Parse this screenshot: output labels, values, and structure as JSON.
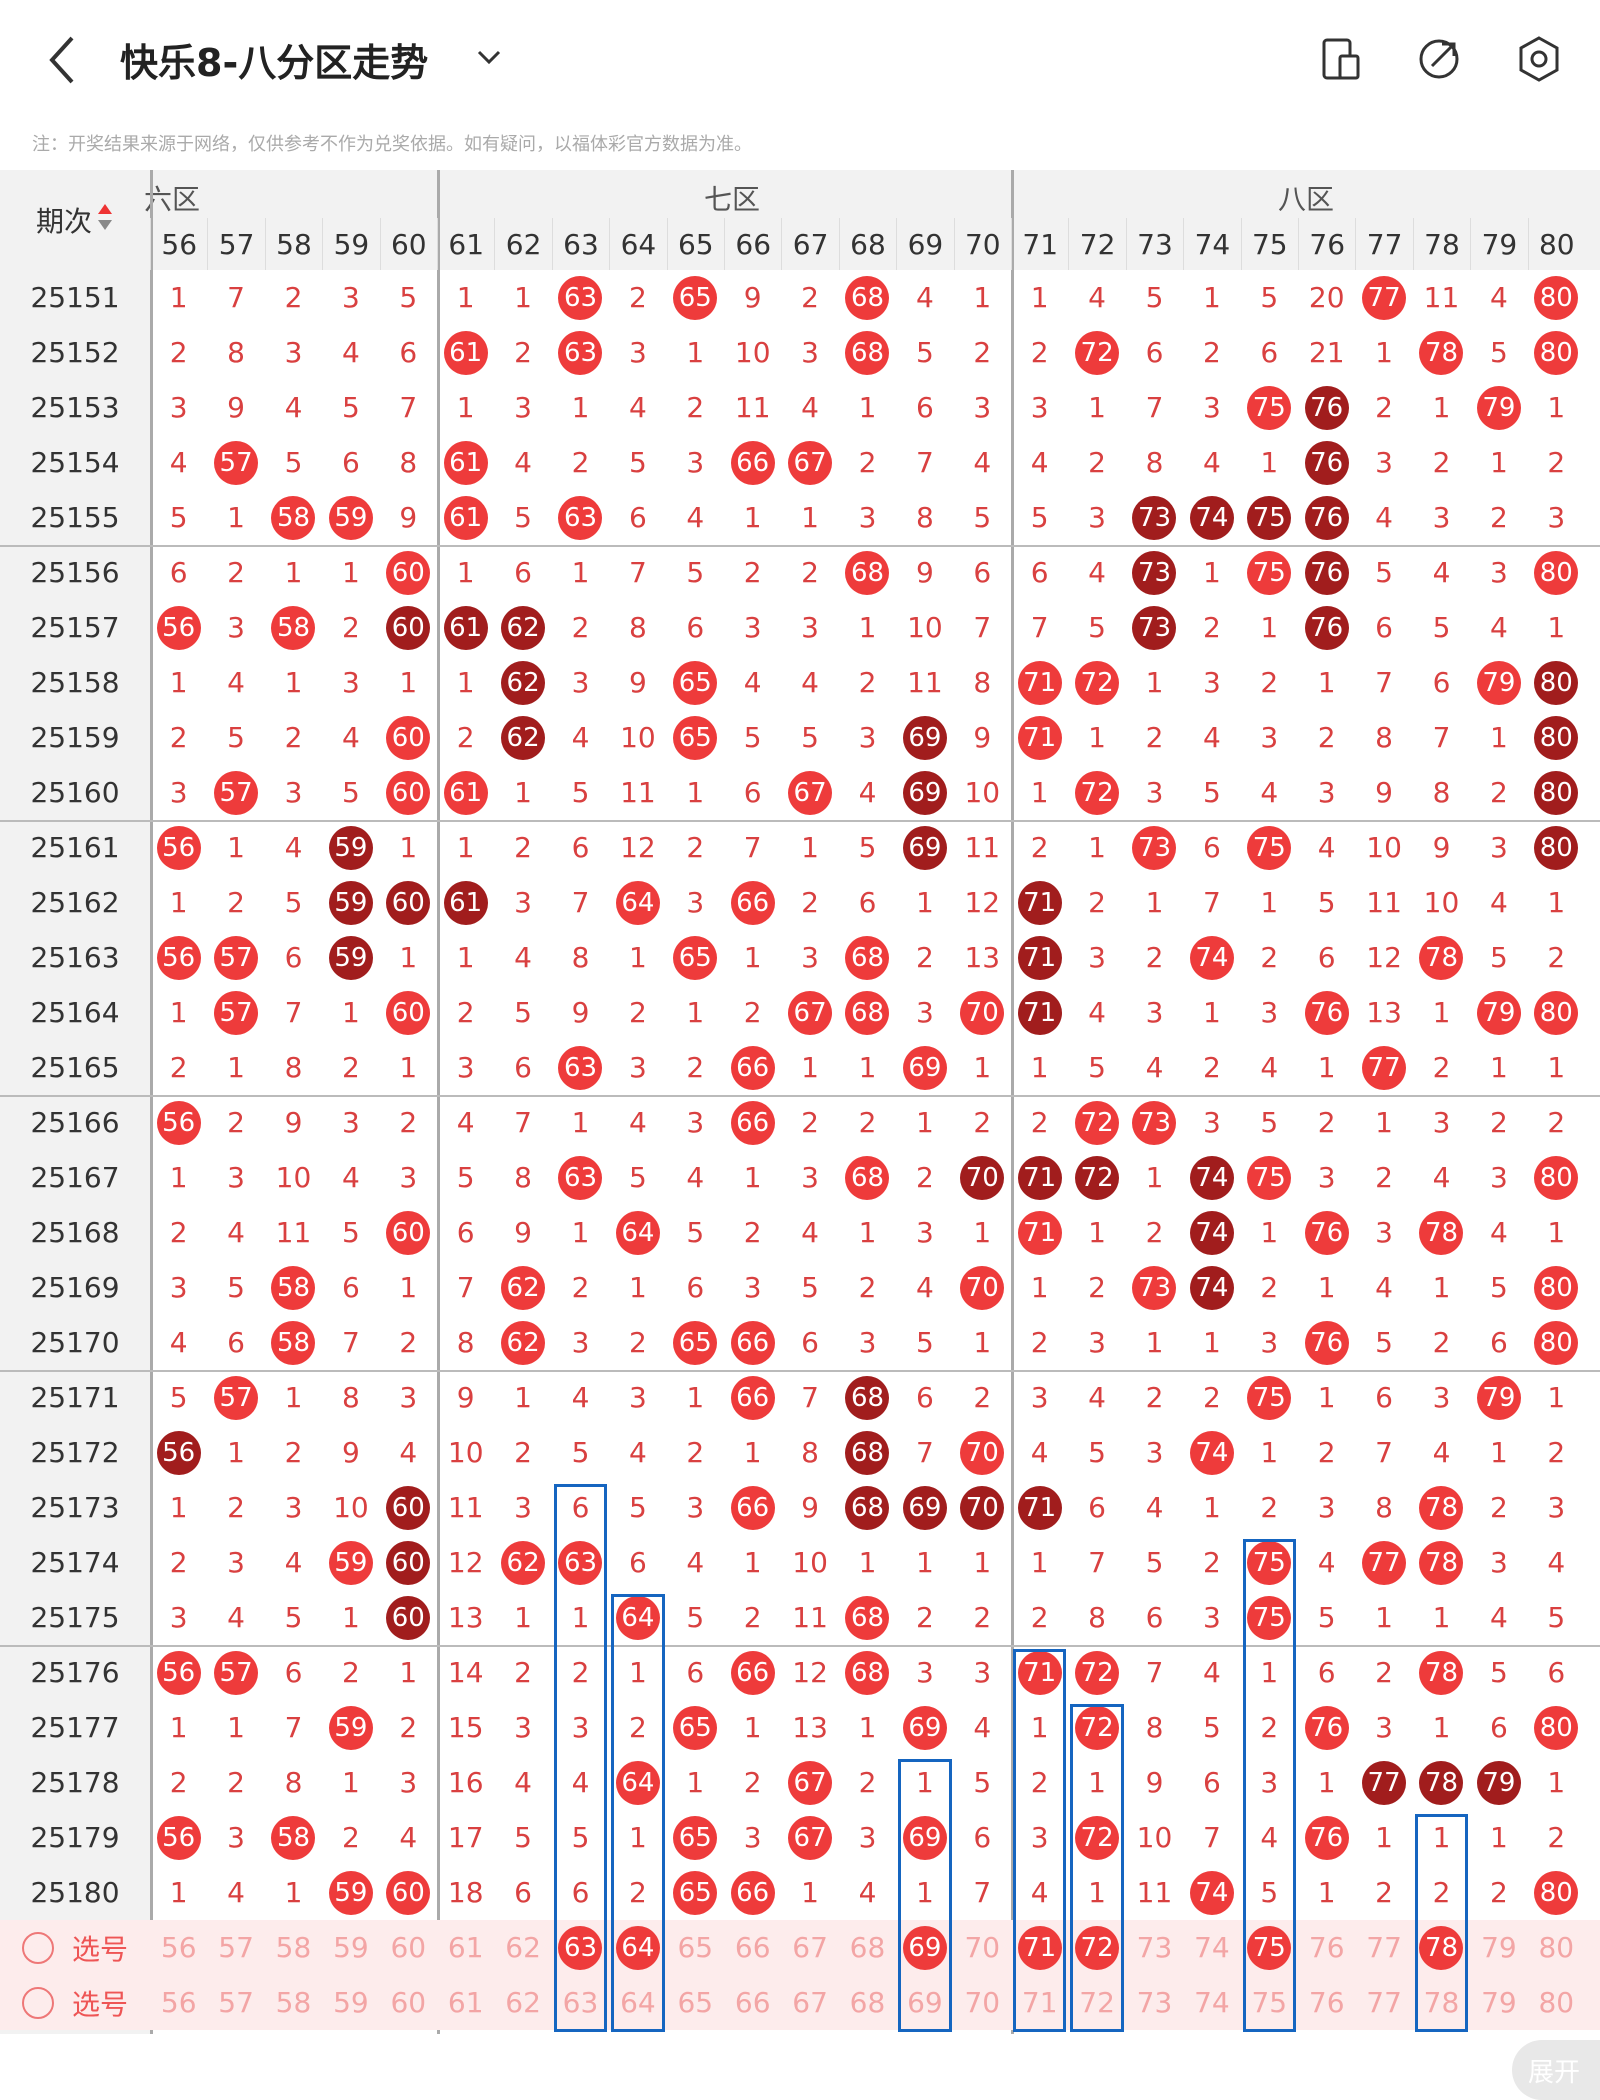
{
  "header": {
    "title": "快乐8-八分区走势",
    "note": "注：开奖结果来源于网络，仅供参考不作为兑奖依据。如有疑问，以福体彩官方数据为准。"
  },
  "table": {
    "issue_header": "期次",
    "zones": [
      {
        "label": "六区"
      },
      {
        "label": "七区"
      },
      {
        "label": "八区"
      }
    ],
    "columns": [
      "56",
      "57",
      "58",
      "59",
      "60",
      "61",
      "62",
      "63",
      "64",
      "65",
      "66",
      "67",
      "68",
      "69",
      "70",
      "71",
      "72",
      "73",
      "74",
      "75",
      "76",
      "77",
      "78",
      "79",
      "80"
    ],
    "rows": [
      {
        "issue": "25151",
        "cells": [
          "1",
          "7",
          "2",
          "3",
          "5",
          "1",
          "1",
          "63",
          "2",
          "65",
          "9",
          "2",
          "68",
          "4",
          "1",
          "1",
          "4",
          "5",
          "1",
          "5",
          "20",
          "77",
          "11",
          "4",
          "80"
        ],
        "dark": []
      },
      {
        "issue": "25152",
        "cells": [
          "2",
          "8",
          "3",
          "4",
          "6",
          "61",
          "2",
          "63",
          "3",
          "1",
          "10",
          "3",
          "68",
          "5",
          "2",
          "2",
          "72",
          "6",
          "2",
          "6",
          "21",
          "1",
          "78",
          "5",
          "80"
        ],
        "dark": []
      },
      {
        "issue": "25153",
        "cells": [
          "3",
          "9",
          "4",
          "5",
          "7",
          "1",
          "3",
          "1",
          "4",
          "2",
          "11",
          "4",
          "1",
          "6",
          "3",
          "3",
          "1",
          "7",
          "3",
          "75",
          "76",
          "2",
          "1",
          "79",
          "1"
        ],
        "dark": [
          "76"
        ]
      },
      {
        "issue": "25154",
        "cells": [
          "4",
          "57",
          "5",
          "6",
          "8",
          "61",
          "4",
          "2",
          "5",
          "3",
          "66",
          "67",
          "2",
          "7",
          "4",
          "4",
          "2",
          "8",
          "4",
          "1",
          "76",
          "3",
          "2",
          "1",
          "2"
        ],
        "dark": [
          "76"
        ]
      },
      {
        "issue": "25155",
        "cells": [
          "5",
          "1",
          "58",
          "59",
          "9",
          "61",
          "5",
          "63",
          "6",
          "4",
          "1",
          "1",
          "3",
          "8",
          "5",
          "5",
          "3",
          "73",
          "74",
          "75",
          "76",
          "4",
          "3",
          "2",
          "3"
        ],
        "dark": [
          "73",
          "74",
          "75",
          "76"
        ]
      },
      {
        "issue": "25156",
        "cells": [
          "6",
          "2",
          "1",
          "1",
          "60",
          "1",
          "6",
          "1",
          "7",
          "5",
          "2",
          "2",
          "68",
          "9",
          "6",
          "6",
          "4",
          "73",
          "1",
          "75",
          "76",
          "5",
          "4",
          "3",
          "80"
        ],
        "dark": [
          "73",
          "76"
        ]
      },
      {
        "issue": "25157",
        "cells": [
          "56",
          "3",
          "58",
          "2",
          "60",
          "61",
          "62",
          "2",
          "8",
          "6",
          "3",
          "3",
          "1",
          "10",
          "7",
          "7",
          "5",
          "73",
          "2",
          "1",
          "76",
          "6",
          "5",
          "4",
          "1"
        ],
        "dark": [
          "60",
          "61",
          "62",
          "73",
          "76"
        ]
      },
      {
        "issue": "25158",
        "cells": [
          "1",
          "4",
          "1",
          "3",
          "1",
          "1",
          "62",
          "3",
          "9",
          "65",
          "4",
          "4",
          "2",
          "11",
          "8",
          "71",
          "72",
          "1",
          "3",
          "2",
          "1",
          "7",
          "6",
          "79",
          "80"
        ],
        "dark": [
          "62",
          "80"
        ]
      },
      {
        "issue": "25159",
        "cells": [
          "2",
          "5",
          "2",
          "4",
          "60",
          "2",
          "62",
          "4",
          "10",
          "65",
          "5",
          "5",
          "3",
          "69",
          "9",
          "71",
          "1",
          "2",
          "4",
          "3",
          "2",
          "8",
          "7",
          "1",
          "80"
        ],
        "dark": [
          "62",
          "69",
          "80"
        ]
      },
      {
        "issue": "25160",
        "cells": [
          "3",
          "57",
          "3",
          "5",
          "60",
          "61",
          "1",
          "5",
          "11",
          "1",
          "6",
          "67",
          "4",
          "69",
          "10",
          "1",
          "72",
          "3",
          "5",
          "4",
          "3",
          "9",
          "8",
          "2",
          "80"
        ],
        "dark": [
          "69",
          "80"
        ]
      },
      {
        "issue": "25161",
        "cells": [
          "56",
          "1",
          "4",
          "59",
          "1",
          "1",
          "2",
          "6",
          "12",
          "2",
          "7",
          "1",
          "5",
          "69",
          "11",
          "2",
          "1",
          "73",
          "6",
          "75",
          "4",
          "10",
          "9",
          "3",
          "80"
        ],
        "dark": [
          "59",
          "69",
          "80"
        ]
      },
      {
        "issue": "25162",
        "cells": [
          "1",
          "2",
          "5",
          "59",
          "60",
          "61",
          "3",
          "7",
          "64",
          "3",
          "66",
          "2",
          "6",
          "1",
          "12",
          "71",
          "2",
          "1",
          "7",
          "1",
          "5",
          "11",
          "10",
          "4",
          "1"
        ],
        "dark": [
          "59",
          "60",
          "61",
          "71"
        ]
      },
      {
        "issue": "25163",
        "cells": [
          "56",
          "57",
          "6",
          "59",
          "1",
          "1",
          "4",
          "8",
          "1",
          "65",
          "1",
          "3",
          "68",
          "2",
          "13",
          "71",
          "3",
          "2",
          "74",
          "2",
          "6",
          "12",
          "78",
          "5",
          "2"
        ],
        "dark": [
          "59",
          "71"
        ]
      },
      {
        "issue": "25164",
        "cells": [
          "1",
          "57",
          "7",
          "1",
          "60",
          "2",
          "5",
          "9",
          "2",
          "1",
          "2",
          "67",
          "68",
          "3",
          "70",
          "71",
          "4",
          "3",
          "1",
          "3",
          "76",
          "13",
          "1",
          "79",
          "80"
        ],
        "dark": [
          "71"
        ]
      },
      {
        "issue": "25165",
        "cells": [
          "2",
          "1",
          "8",
          "2",
          "1",
          "3",
          "6",
          "63",
          "3",
          "2",
          "66",
          "1",
          "1",
          "69",
          "1",
          "1",
          "5",
          "4",
          "2",
          "4",
          "1",
          "77",
          "2",
          "1",
          "1"
        ],
        "dark": []
      },
      {
        "issue": "25166",
        "cells": [
          "56",
          "2",
          "9",
          "3",
          "2",
          "4",
          "7",
          "1",
          "4",
          "3",
          "66",
          "2",
          "2",
          "1",
          "2",
          "2",
          "72",
          "73",
          "3",
          "5",
          "2",
          "1",
          "3",
          "2",
          "2"
        ],
        "dark": []
      },
      {
        "issue": "25167",
        "cells": [
          "1",
          "3",
          "10",
          "4",
          "3",
          "5",
          "8",
          "63",
          "5",
          "4",
          "1",
          "3",
          "68",
          "2",
          "70",
          "71",
          "72",
          "1",
          "74",
          "75",
          "3",
          "2",
          "4",
          "3",
          "80"
        ],
        "dark": [
          "70",
          "71",
          "72",
          "74"
        ]
      },
      {
        "issue": "25168",
        "cells": [
          "2",
          "4",
          "11",
          "5",
          "60",
          "6",
          "9",
          "1",
          "64",
          "5",
          "2",
          "4",
          "1",
          "3",
          "1",
          "71",
          "1",
          "2",
          "74",
          "1",
          "76",
          "3",
          "78",
          "4",
          "1"
        ],
        "dark": [
          "74"
        ]
      },
      {
        "issue": "25169",
        "cells": [
          "3",
          "5",
          "58",
          "6",
          "1",
          "7",
          "62",
          "2",
          "1",
          "6",
          "3",
          "5",
          "2",
          "4",
          "70",
          "1",
          "2",
          "73",
          "74",
          "2",
          "1",
          "4",
          "1",
          "5",
          "80"
        ],
        "dark": [
          "74"
        ]
      },
      {
        "issue": "25170",
        "cells": [
          "4",
          "6",
          "58",
          "7",
          "2",
          "8",
          "62",
          "3",
          "2",
          "65",
          "66",
          "6",
          "3",
          "5",
          "1",
          "2",
          "3",
          "1",
          "1",
          "3",
          "76",
          "5",
          "2",
          "6",
          "80"
        ],
        "dark": []
      },
      {
        "issue": "25171",
        "cells": [
          "5",
          "57",
          "1",
          "8",
          "3",
          "9",
          "1",
          "4",
          "3",
          "1",
          "66",
          "7",
          "68",
          "6",
          "2",
          "3",
          "4",
          "2",
          "2",
          "75",
          "1",
          "6",
          "3",
          "79",
          "1"
        ],
        "dark": [
          "68"
        ]
      },
      {
        "issue": "25172",
        "cells": [
          "56",
          "1",
          "2",
          "9",
          "4",
          "10",
          "2",
          "5",
          "4",
          "2",
          "1",
          "8",
          "68",
          "7",
          "70",
          "4",
          "5",
          "3",
          "74",
          "1",
          "2",
          "7",
          "4",
          "1",
          "2"
        ],
        "dark": [
          "56",
          "68"
        ]
      },
      {
        "issue": "25173",
        "cells": [
          "1",
          "2",
          "3",
          "10",
          "60",
          "11",
          "3",
          "6",
          "5",
          "3",
          "66",
          "9",
          "68",
          "69",
          "70",
          "71",
          "6",
          "4",
          "1",
          "2",
          "3",
          "8",
          "78",
          "2",
          "3"
        ],
        "dark": [
          "60",
          "68",
          "69",
          "70",
          "71"
        ]
      },
      {
        "issue": "25174",
        "cells": [
          "2",
          "3",
          "4",
          "59",
          "60",
          "12",
          "62",
          "63",
          "6",
          "4",
          "1",
          "10",
          "1",
          "1",
          "1",
          "1",
          "7",
          "5",
          "2",
          "75",
          "4",
          "77",
          "78",
          "3",
          "4"
        ],
        "dark": [
          "60"
        ]
      },
      {
        "issue": "25175",
        "cells": [
          "3",
          "4",
          "5",
          "1",
          "60",
          "13",
          "1",
          "1",
          "64",
          "5",
          "2",
          "11",
          "68",
          "2",
          "2",
          "2",
          "8",
          "6",
          "3",
          "75",
          "5",
          "1",
          "1",
          "4",
          "5"
        ],
        "dark": [
          "60"
        ]
      },
      {
        "issue": "25176",
        "cells": [
          "56",
          "57",
          "6",
          "2",
          "1",
          "14",
          "2",
          "2",
          "1",
          "6",
          "66",
          "12",
          "68",
          "3",
          "3",
          "71",
          "72",
          "7",
          "4",
          "1",
          "6",
          "2",
          "78",
          "5",
          "6"
        ],
        "dark": []
      },
      {
        "issue": "25177",
        "cells": [
          "1",
          "1",
          "7",
          "59",
          "2",
          "15",
          "3",
          "3",
          "2",
          "65",
          "1",
          "13",
          "1",
          "69",
          "4",
          "1",
          "72",
          "8",
          "5",
          "2",
          "76",
          "3",
          "1",
          "6",
          "80"
        ],
        "dark": []
      },
      {
        "issue": "25178",
        "cells": [
          "2",
          "2",
          "8",
          "1",
          "3",
          "16",
          "4",
          "4",
          "64",
          "1",
          "2",
          "67",
          "2",
          "1",
          "5",
          "2",
          "1",
          "9",
          "6",
          "3",
          "1",
          "77",
          "78",
          "79",
          "1"
        ],
        "dark": [
          "77",
          "78",
          "79"
        ]
      },
      {
        "issue": "25179",
        "cells": [
          "56",
          "3",
          "58",
          "2",
          "4",
          "17",
          "5",
          "5",
          "1",
          "65",
          "3",
          "67",
          "3",
          "69",
          "6",
          "3",
          "72",
          "10",
          "7",
          "4",
          "76",
          "1",
          "1",
          "1",
          "2"
        ],
        "dark": []
      },
      {
        "issue": "25180",
        "cells": [
          "1",
          "4",
          "1",
          "59",
          "60",
          "18",
          "6",
          "6",
          "2",
          "65",
          "66",
          "1",
          "4",
          "1",
          "7",
          "4",
          "1",
          "11",
          "74",
          "5",
          "1",
          "2",
          "2",
          "2",
          "80"
        ],
        "dark": []
      }
    ],
    "select_rows": [
      {
        "label": "选号",
        "picked": [
          "63",
          "64",
          "69",
          "71",
          "72",
          "75",
          "78"
        ]
      },
      {
        "label": "选号",
        "picked": []
      }
    ],
    "expand_label": "展开"
  },
  "colors": {
    "ball_red": "#ee3b3b",
    "ball_dark": "#a11d1d",
    "miss_text": "#d94040",
    "highlight": "#1565c0"
  }
}
